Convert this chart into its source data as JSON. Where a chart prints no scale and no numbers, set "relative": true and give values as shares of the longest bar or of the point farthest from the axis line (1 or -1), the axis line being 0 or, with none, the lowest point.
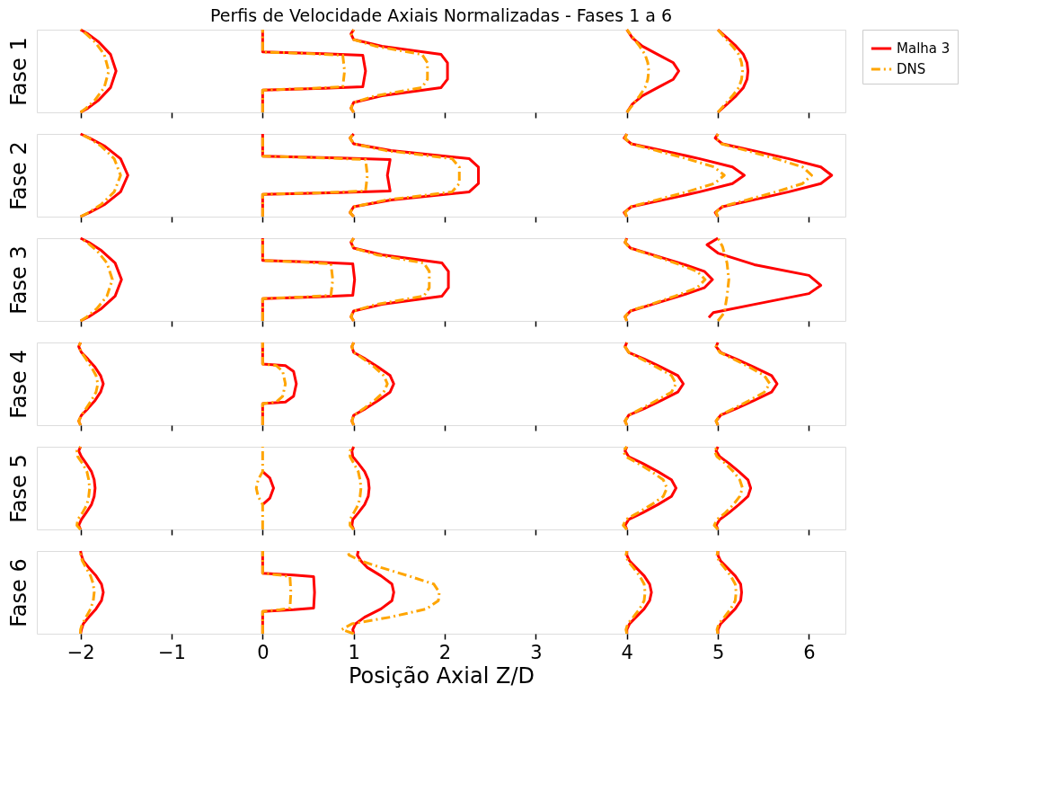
{
  "chart_data": [
    {
      "type": "line",
      "title": "Perfis de Velocidade Axiais Normalizadas - Fases 1 a 6",
      "ylabel": "Fase 1",
      "relative": true,
      "xlim": [
        -2.48,
        6.4
      ],
      "xticks": [
        -2,
        -1,
        0,
        1,
        2,
        3,
        4,
        5,
        6
      ],
      "tick_labels": false,
      "grid": false,
      "legend": "right",
      "marker": "none",
      "series": [
        {
          "name": "Malha 3",
          "color": "#ff0000",
          "line_style": "solid",
          "x": [
            -2,
            -1.92,
            -1.8,
            -1.67,
            -1.61,
            -1.67,
            -1.8,
            -1.92,
            -2
          ],
          "values": [
            0,
            0.05,
            0.15,
            0.3,
            0.5,
            0.7,
            0.85,
            0.95,
            1
          ]
        },
        {
          "name": "DNS",
          "color": "#ffa500",
          "line_style": "dashdot",
          "x": [
            -2,
            -1.94,
            -1.84,
            -1.74,
            -1.69,
            -1.74,
            -1.84,
            -1.94,
            -2
          ],
          "values": [
            0,
            0.05,
            0.15,
            0.3,
            0.5,
            0.7,
            0.85,
            0.95,
            1
          ]
        },
        {
          "color": "#ff0000",
          "line_style": "solid",
          "x": [
            0,
            0,
            0.67,
            1.1,
            1.13,
            1.1,
            0.67,
            0,
            0
          ],
          "values": [
            0,
            0.27,
            0.29,
            0.31,
            0.5,
            0.69,
            0.71,
            0.73,
            1
          ]
        },
        {
          "color": "#ffa500",
          "line_style": "dashdot",
          "x": [
            0,
            0,
            0.54,
            0.88,
            0.9,
            0.88,
            0.54,
            0,
            0
          ],
          "values": [
            0,
            0.27,
            0.29,
            0.31,
            0.5,
            0.69,
            0.71,
            0.73,
            1
          ]
        },
        {
          "color": "#ff0000",
          "line_style": "solid",
          "x": [
            1,
            0.97,
            1.0,
            1.31,
            1.96,
            2.03,
            2.03,
            2.03,
            1.96,
            1.31,
            1.0,
            0.97,
            1
          ],
          "values": [
            0,
            0.05,
            0.12,
            0.2,
            0.3,
            0.4,
            0.5,
            0.6,
            0.7,
            0.8,
            0.88,
            0.95,
            1
          ]
        },
        {
          "color": "#ffa500",
          "line_style": "dashdot",
          "x": [
            1,
            0.97,
            1.0,
            1.24,
            1.75,
            1.81,
            1.81,
            1.81,
            1.75,
            1.24,
            1.0,
            0.97,
            1
          ],
          "values": [
            0,
            0.05,
            0.12,
            0.2,
            0.3,
            0.4,
            0.5,
            0.6,
            0.7,
            0.8,
            0.88,
            0.95,
            1
          ]
        },
        {
          "color": "#ff0000",
          "line_style": "solid",
          "x": [
            4,
            4.06,
            4.17,
            4.34,
            4.51,
            4.57,
            4.51,
            4.34,
            4.17,
            4.06,
            4
          ],
          "values": [
            0,
            0.1,
            0.2,
            0.3,
            0.4,
            0.5,
            0.6,
            0.7,
            0.8,
            0.9,
            1
          ]
        },
        {
          "color": "#ffa500",
          "line_style": "dashdot",
          "x": [
            4,
            4.07,
            4.14,
            4.2,
            4.23,
            4.24,
            4.23,
            4.2,
            4.14,
            4.07,
            4
          ],
          "values": [
            0,
            0.1,
            0.2,
            0.3,
            0.4,
            0.5,
            0.6,
            0.7,
            0.8,
            0.9,
            1
          ]
        },
        {
          "color": "#ff0000",
          "line_style": "solid",
          "x": [
            5,
            5.1,
            5.2,
            5.28,
            5.32,
            5.33,
            5.32,
            5.28,
            5.2,
            5.1,
            5
          ],
          "values": [
            0,
            0.1,
            0.2,
            0.3,
            0.4,
            0.5,
            0.6,
            0.7,
            0.8,
            0.9,
            1
          ]
        },
        {
          "color": "#ffa500",
          "line_style": "dashdot",
          "x": [
            5,
            5.08,
            5.16,
            5.23,
            5.26,
            5.27,
            5.26,
            5.23,
            5.16,
            5.08,
            5
          ],
          "values": [
            0,
            0.1,
            0.2,
            0.3,
            0.4,
            0.5,
            0.6,
            0.7,
            0.8,
            0.9,
            1
          ]
        }
      ]
    },
    {
      "type": "line",
      "ylabel": "Fase 2",
      "relative": true,
      "xlim": [
        -2.48,
        6.4
      ],
      "xticks": [
        -2,
        -1,
        0,
        1,
        2,
        3,
        4,
        5,
        6
      ],
      "tick_labels": false,
      "grid": false,
      "marker": "none",
      "series": [
        {
          "color": "#ff0000",
          "line_style": "solid",
          "x": [
            -2,
            -1.9,
            -1.73,
            -1.56,
            -1.48,
            -1.56,
            -1.73,
            -1.9,
            -2
          ],
          "values": [
            0,
            0.05,
            0.15,
            0.3,
            0.5,
            0.7,
            0.85,
            0.95,
            1
          ]
        },
        {
          "color": "#ffa500",
          "line_style": "dashdot",
          "x": [
            -2,
            -1.91,
            -1.77,
            -1.63,
            -1.56,
            -1.63,
            -1.77,
            -1.91,
            -2
          ],
          "values": [
            0,
            0.05,
            0.15,
            0.3,
            0.5,
            0.7,
            0.85,
            0.95,
            1
          ]
        },
        {
          "color": "#ff0000",
          "line_style": "solid",
          "x": [
            0,
            0,
            0.84,
            1.4,
            1.37,
            1.4,
            0.84,
            0,
            0
          ],
          "values": [
            0,
            0.27,
            0.29,
            0.31,
            0.5,
            0.69,
            0.71,
            0.73,
            1
          ]
        },
        {
          "color": "#ffa500",
          "line_style": "dashdot",
          "x": [
            0,
            0,
            0.69,
            1.13,
            1.15,
            1.13,
            0.69,
            0,
            0
          ],
          "values": [
            0,
            0.27,
            0.29,
            0.31,
            0.5,
            0.69,
            0.71,
            0.73,
            1
          ]
        },
        {
          "color": "#ff0000",
          "line_style": "solid",
          "x": [
            1,
            0.96,
            1.0,
            1.41,
            2.27,
            2.37,
            2.37,
            2.37,
            2.27,
            1.41,
            1.0,
            0.96,
            1
          ],
          "values": [
            0,
            0.05,
            0.12,
            0.2,
            0.3,
            0.4,
            0.5,
            0.6,
            0.7,
            0.8,
            0.88,
            0.95,
            1
          ]
        },
        {
          "color": "#ffa500",
          "line_style": "dashdot",
          "x": [
            1,
            0.96,
            1.0,
            1.35,
            2.08,
            2.16,
            2.16,
            2.16,
            2.08,
            1.35,
            1.0,
            0.96,
            1
          ],
          "values": [
            0,
            0.05,
            0.12,
            0.2,
            0.3,
            0.4,
            0.5,
            0.6,
            0.7,
            0.8,
            0.88,
            0.95,
            1
          ]
        },
        {
          "color": "#ff0000",
          "line_style": "solid",
          "x": [
            4,
            3.97,
            4.05,
            4.39,
            4.8,
            5.16,
            5.29,
            5.16,
            4.8,
            4.39,
            4.05,
            3.97,
            4
          ],
          "values": [
            0,
            0.05,
            0.12,
            0.2,
            0.3,
            0.4,
            0.5,
            0.6,
            0.7,
            0.8,
            0.88,
            0.95,
            1
          ]
        },
        {
          "color": "#ffa500",
          "line_style": "dashdot",
          "x": [
            4,
            3.98,
            4.04,
            4.32,
            4.66,
            4.96,
            5.07,
            4.96,
            4.66,
            4.32,
            4.04,
            3.98,
            4
          ],
          "values": [
            0,
            0.05,
            0.12,
            0.2,
            0.3,
            0.4,
            0.5,
            0.6,
            0.7,
            0.8,
            0.88,
            0.95,
            1
          ]
        },
        {
          "color": "#ff0000",
          "line_style": "solid",
          "x": [
            5,
            4.97,
            5.05,
            5.38,
            5.78,
            6.13,
            6.25,
            6.13,
            5.78,
            5.38,
            5.05,
            4.97,
            5
          ],
          "values": [
            0,
            0.05,
            0.12,
            0.2,
            0.3,
            0.4,
            0.5,
            0.6,
            0.7,
            0.8,
            0.88,
            0.95,
            1
          ]
        },
        {
          "color": "#ffa500",
          "line_style": "dashdot",
          "x": [
            5,
            4.98,
            5.04,
            5.31,
            5.64,
            5.93,
            6.03,
            5.93,
            5.64,
            5.31,
            5.04,
            4.98,
            5
          ],
          "values": [
            0,
            0.05,
            0.12,
            0.2,
            0.3,
            0.4,
            0.5,
            0.6,
            0.7,
            0.8,
            0.88,
            0.95,
            1
          ]
        }
      ]
    },
    {
      "type": "line",
      "ylabel": "Fase 3",
      "relative": true,
      "xlim": [
        -2.48,
        6.4
      ],
      "xticks": [
        -2,
        -1,
        0,
        1,
        2,
        3,
        4,
        5,
        6
      ],
      "tick_labels": false,
      "grid": false,
      "marker": "none",
      "series": [
        {
          "color": "#ff0000",
          "line_style": "solid",
          "x": [
            -2,
            -1.91,
            -1.77,
            -1.62,
            -1.55,
            -1.62,
            -1.77,
            -1.91,
            -2
          ],
          "values": [
            0,
            0.05,
            0.15,
            0.3,
            0.5,
            0.7,
            0.85,
            0.95,
            1
          ]
        },
        {
          "color": "#ffa500",
          "line_style": "dashdot",
          "x": [
            -2,
            -1.93,
            -1.82,
            -1.71,
            -1.65,
            -1.71,
            -1.82,
            -1.93,
            -2
          ],
          "values": [
            0,
            0.05,
            0.15,
            0.3,
            0.5,
            0.7,
            0.85,
            0.95,
            1
          ]
        },
        {
          "color": "#ff0000",
          "line_style": "solid",
          "x": [
            0,
            0,
            0.61,
            0.99,
            1.01,
            0.99,
            0.61,
            0,
            0
          ],
          "values": [
            0,
            0.27,
            0.29,
            0.31,
            0.5,
            0.69,
            0.71,
            0.73,
            1
          ]
        },
        {
          "color": "#ffa500",
          "line_style": "dashdot",
          "x": [
            0,
            0,
            0.46,
            0.75,
            0.77,
            0.75,
            0.46,
            0,
            0
          ],
          "values": [
            0,
            0.27,
            0.29,
            0.31,
            0.5,
            0.69,
            0.71,
            0.73,
            1
          ]
        },
        {
          "color": "#ff0000",
          "line_style": "solid",
          "x": [
            1,
            0.97,
            1.0,
            1.31,
            1.97,
            2.04,
            2.04,
            2.04,
            1.97,
            1.31,
            1.0,
            0.97,
            1
          ],
          "values": [
            0,
            0.05,
            0.12,
            0.2,
            0.3,
            0.4,
            0.5,
            0.6,
            0.7,
            0.8,
            0.88,
            0.95,
            1
          ]
        },
        {
          "color": "#ffa500",
          "line_style": "dashdot",
          "x": [
            1,
            0.97,
            1.0,
            1.25,
            1.77,
            1.83,
            1.83,
            1.83,
            1.77,
            1.25,
            1.0,
            0.97,
            1
          ],
          "values": [
            0,
            0.05,
            0.12,
            0.2,
            0.3,
            0.4,
            0.5,
            0.6,
            0.7,
            0.8,
            0.88,
            0.95,
            1
          ]
        },
        {
          "color": "#ff0000",
          "line_style": "solid",
          "x": [
            4,
            3.98,
            4.04,
            4.28,
            4.58,
            4.85,
            4.94,
            4.85,
            4.58,
            4.28,
            4.04,
            3.98,
            4
          ],
          "values": [
            0,
            0.05,
            0.12,
            0.2,
            0.3,
            0.4,
            0.5,
            0.6,
            0.7,
            0.8,
            0.88,
            0.95,
            1
          ]
        },
        {
          "color": "#ffa500",
          "line_style": "dashdot",
          "x": [
            4,
            3.98,
            4.03,
            4.26,
            4.53,
            4.77,
            4.86,
            4.77,
            4.53,
            4.26,
            4.03,
            3.98,
            4
          ],
          "values": [
            0,
            0.05,
            0.12,
            0.2,
            0.3,
            0.4,
            0.5,
            0.6,
            0.7,
            0.8,
            0.88,
            0.95,
            1
          ]
        },
        {
          "color": "#ff0000",
          "line_style": "solid",
          "x": [
            4.9,
            4.95,
            5.4,
            6.0,
            6.13,
            6.0,
            5.4,
            5.0,
            4.88,
            5.0
          ],
          "values": [
            0.04,
            0.1,
            0.2,
            0.33,
            0.43,
            0.55,
            0.68,
            0.82,
            0.92,
            1
          ]
        },
        {
          "color": "#ffa500",
          "line_style": "dashdot",
          "x": [
            5,
            5.07,
            5.1,
            5.12,
            5.1,
            5.05,
            5
          ],
          "values": [
            0,
            0.1,
            0.3,
            0.5,
            0.7,
            0.9,
            1
          ]
        }
      ]
    },
    {
      "type": "line",
      "ylabel": "Fase 4",
      "relative": true,
      "xlim": [
        -2.48,
        6.4
      ],
      "xticks": [
        -2,
        -1,
        0,
        1,
        2,
        3,
        4,
        5,
        6
      ],
      "tick_labels": false,
      "grid": false,
      "marker": "none",
      "series": [
        {
          "color": "#ff0000",
          "line_style": "solid",
          "x": [
            -2,
            -2.02,
            -1.99,
            -1.92,
            -1.84,
            -1.78,
            -1.75,
            -1.78,
            -1.84,
            -1.92,
            -1.99,
            -2.02,
            -2
          ],
          "values": [
            0,
            0.05,
            0.12,
            0.2,
            0.3,
            0.4,
            0.5,
            0.6,
            0.7,
            0.8,
            0.88,
            0.95,
            1
          ]
        },
        {
          "color": "#ffa500",
          "line_style": "dashdot",
          "x": [
            -2,
            -2.02,
            -1.99,
            -1.94,
            -1.88,
            -1.83,
            -1.81,
            -1.83,
            -1.88,
            -1.94,
            -1.99,
            -2.02,
            -2
          ],
          "values": [
            0,
            0.05,
            0.12,
            0.2,
            0.3,
            0.4,
            0.5,
            0.6,
            0.7,
            0.8,
            0.88,
            0.95,
            1
          ]
        },
        {
          "color": "#ff0000",
          "line_style": "solid",
          "x": [
            0,
            0,
            0.25,
            0.34,
            0.37,
            0.34,
            0.25,
            0,
            0
          ],
          "values": [
            0,
            0.26,
            0.28,
            0.35,
            0.5,
            0.65,
            0.72,
            0.74,
            1
          ]
        },
        {
          "color": "#ffa500",
          "line_style": "dashdot",
          "x": [
            0,
            0,
            0.15,
            0.22,
            0.25,
            0.22,
            0.15,
            0,
            0
          ],
          "values": [
            0,
            0.26,
            0.28,
            0.35,
            0.5,
            0.65,
            0.72,
            0.74,
            1
          ]
        },
        {
          "color": "#ff0000",
          "line_style": "solid",
          "x": [
            1,
            0.98,
            1.0,
            1.13,
            1.27,
            1.4,
            1.44,
            1.4,
            1.27,
            1.13,
            1.0,
            0.98,
            1
          ],
          "values": [
            0,
            0.05,
            0.12,
            0.2,
            0.3,
            0.4,
            0.5,
            0.6,
            0.7,
            0.8,
            0.88,
            0.95,
            1
          ]
        },
        {
          "color": "#ffa500",
          "line_style": "dashdot",
          "x": [
            1,
            0.98,
            1.0,
            1.11,
            1.23,
            1.33,
            1.37,
            1.33,
            1.23,
            1.11,
            1.0,
            0.98,
            1
          ],
          "values": [
            0,
            0.05,
            0.12,
            0.2,
            0.3,
            0.4,
            0.5,
            0.6,
            0.7,
            0.8,
            0.88,
            0.95,
            1
          ]
        },
        {
          "color": "#ff0000",
          "line_style": "solid",
          "x": [
            4,
            3.98,
            4.02,
            4.19,
            4.38,
            4.56,
            4.62,
            4.56,
            4.38,
            4.19,
            4.02,
            3.98,
            4
          ],
          "values": [
            0,
            0.05,
            0.12,
            0.2,
            0.3,
            0.4,
            0.5,
            0.6,
            0.7,
            0.8,
            0.88,
            0.95,
            1
          ]
        },
        {
          "color": "#ffa500",
          "line_style": "dashdot",
          "x": [
            4,
            3.98,
            4.02,
            4.16,
            4.33,
            4.49,
            4.54,
            4.49,
            4.33,
            4.16,
            4.02,
            3.98,
            4
          ],
          "values": [
            0,
            0.05,
            0.12,
            0.2,
            0.3,
            0.4,
            0.5,
            0.6,
            0.7,
            0.8,
            0.88,
            0.95,
            1
          ]
        },
        {
          "color": "#ff0000",
          "line_style": "solid",
          "x": [
            5,
            4.98,
            5.03,
            5.2,
            5.4,
            5.59,
            5.65,
            5.59,
            5.4,
            5.2,
            5.03,
            4.98,
            5
          ],
          "values": [
            0,
            0.05,
            0.12,
            0.2,
            0.3,
            0.4,
            0.5,
            0.6,
            0.7,
            0.8,
            0.88,
            0.95,
            1
          ]
        },
        {
          "color": "#ffa500",
          "line_style": "dashdot",
          "x": [
            5,
            4.98,
            5.02,
            5.17,
            5.35,
            5.51,
            5.57,
            5.51,
            5.35,
            5.17,
            5.02,
            4.98,
            5
          ],
          "values": [
            0,
            0.05,
            0.12,
            0.2,
            0.3,
            0.4,
            0.5,
            0.6,
            0.7,
            0.8,
            0.88,
            0.95,
            1
          ]
        }
      ]
    },
    {
      "type": "line",
      "ylabel": "Fase 5",
      "relative": true,
      "xlim": [
        -2.48,
        6.4
      ],
      "xticks": [
        -2,
        -1,
        0,
        1,
        2,
        3,
        4,
        5,
        6
      ],
      "tick_labels": false,
      "grid": false,
      "marker": "none",
      "series": [
        {
          "color": "#ff0000",
          "line_style": "solid",
          "x": [
            -2,
            -2.02,
            -1.99,
            -1.94,
            -1.88,
            -1.85,
            -1.84,
            -1.85,
            -1.88,
            -1.94,
            -1.99,
            -2.02,
            -2
          ],
          "values": [
            0,
            0.05,
            0.12,
            0.2,
            0.3,
            0.4,
            0.5,
            0.6,
            0.7,
            0.8,
            0.88,
            0.95,
            1
          ]
        },
        {
          "color": "#ffa500",
          "line_style": "dashdot",
          "x": [
            -2,
            -2.04,
            -2.03,
            -1.98,
            -1.93,
            -1.91,
            -1.9,
            -1.91,
            -1.93,
            -1.98,
            -2.03,
            -2.04,
            -2
          ],
          "values": [
            0,
            0.05,
            0.12,
            0.2,
            0.3,
            0.4,
            0.5,
            0.6,
            0.7,
            0.8,
            0.88,
            0.95,
            1
          ]
        },
        {
          "color": "#ff0000",
          "line_style": "solid",
          "x": [
            0,
            0.08,
            0.12,
            0.08,
            0
          ],
          "values": [
            0.3,
            0.38,
            0.5,
            0.62,
            0.7
          ]
        },
        {
          "color": "#ffa500",
          "line_style": "dashdot",
          "x": [
            0,
            0,
            -0.05,
            -0.07,
            -0.05,
            0,
            0
          ],
          "values": [
            0,
            0.3,
            0.4,
            0.5,
            0.6,
            0.7,
            1
          ]
        },
        {
          "color": "#ff0000",
          "line_style": "solid",
          "x": [
            1,
            0.98,
            0.99,
            1.05,
            1.12,
            1.16,
            1.17,
            1.16,
            1.12,
            1.05,
            0.99,
            0.98,
            1
          ],
          "values": [
            0,
            0.05,
            0.12,
            0.2,
            0.3,
            0.4,
            0.5,
            0.6,
            0.7,
            0.8,
            0.88,
            0.95,
            1
          ]
        },
        {
          "color": "#ffa500",
          "line_style": "dashdot",
          "x": [
            1,
            0.96,
            0.96,
            1.0,
            1.05,
            1.07,
            1.08,
            1.07,
            1.05,
            1.0,
            0.96,
            0.96,
            1
          ],
          "values": [
            0,
            0.05,
            0.12,
            0.2,
            0.3,
            0.4,
            0.5,
            0.6,
            0.7,
            0.8,
            0.88,
            0.95,
            1
          ]
        },
        {
          "color": "#ff0000",
          "line_style": "solid",
          "x": [
            4,
            3.98,
            4.02,
            4.17,
            4.34,
            4.49,
            4.54,
            4.49,
            4.34,
            4.17,
            4.02,
            3.98,
            4
          ],
          "values": [
            0,
            0.05,
            0.12,
            0.2,
            0.3,
            0.4,
            0.5,
            0.6,
            0.7,
            0.8,
            0.88,
            0.95,
            1
          ]
        },
        {
          "color": "#ffa500",
          "line_style": "dashdot",
          "x": [
            4,
            3.96,
            3.99,
            4.12,
            4.27,
            4.4,
            4.44,
            4.4,
            4.27,
            4.12,
            3.99,
            3.96,
            4
          ],
          "values": [
            0,
            0.05,
            0.12,
            0.2,
            0.3,
            0.4,
            0.5,
            0.6,
            0.7,
            0.8,
            0.88,
            0.95,
            1
          ]
        },
        {
          "color": "#ff0000",
          "line_style": "solid",
          "x": [
            5,
            4.98,
            5.02,
            5.12,
            5.23,
            5.33,
            5.36,
            5.33,
            5.23,
            5.12,
            5.02,
            4.98,
            5
          ],
          "values": [
            0,
            0.05,
            0.12,
            0.2,
            0.3,
            0.4,
            0.5,
            0.6,
            0.7,
            0.8,
            0.88,
            0.95,
            1
          ]
        },
        {
          "color": "#ffa500",
          "line_style": "dashdot",
          "x": [
            5,
            4.96,
            4.99,
            5.08,
            5.17,
            5.24,
            5.27,
            5.24,
            5.17,
            5.08,
            4.99,
            4.96,
            5
          ],
          "values": [
            0,
            0.05,
            0.12,
            0.2,
            0.3,
            0.4,
            0.5,
            0.6,
            0.7,
            0.8,
            0.88,
            0.95,
            1
          ]
        }
      ]
    },
    {
      "type": "line",
      "ylabel": "Fase 6",
      "xlabel": "Posição Axial Z/D",
      "relative": true,
      "xlim": [
        -2.48,
        6.4
      ],
      "xticks": [
        -2,
        -1,
        0,
        1,
        2,
        3,
        4,
        5,
        6
      ],
      "tick_labels": "x",
      "grid": false,
      "marker": "none",
      "series": [
        {
          "color": "#ff0000",
          "line_style": "solid",
          "x": [
            -2,
            -1.99,
            -1.97,
            -1.91,
            -1.83,
            -1.77,
            -1.75,
            -1.77,
            -1.83,
            -1.91,
            -1.97,
            -1.99,
            -2
          ],
          "values": [
            0,
            0.05,
            0.12,
            0.2,
            0.3,
            0.4,
            0.5,
            0.6,
            0.7,
            0.8,
            0.88,
            0.95,
            1
          ]
        },
        {
          "color": "#ffa500",
          "line_style": "dashdot",
          "x": [
            -2,
            -2.0,
            -1.98,
            -1.94,
            -1.89,
            -1.86,
            -1.85,
            -1.86,
            -1.89,
            -1.94,
            -1.98,
            -2.0,
            -2
          ],
          "values": [
            0,
            0.05,
            0.12,
            0.2,
            0.3,
            0.4,
            0.5,
            0.6,
            0.7,
            0.8,
            0.88,
            0.95,
            1
          ]
        },
        {
          "color": "#ff0000",
          "line_style": "solid",
          "x": [
            0,
            0,
            0.34,
            0.56,
            0.57,
            0.56,
            0.34,
            0,
            0
          ],
          "values": [
            0,
            0.27,
            0.29,
            0.31,
            0.5,
            0.69,
            0.71,
            0.73,
            1
          ]
        },
        {
          "color": "#ffa500",
          "line_style": "dashdot",
          "x": [
            0,
            0,
            0.19,
            0.3,
            0.31,
            0.3,
            0.19,
            0,
            0
          ],
          "values": [
            0,
            0.27,
            0.29,
            0.31,
            0.5,
            0.69,
            0.71,
            0.73,
            1
          ]
        },
        {
          "color": "#ff0000",
          "line_style": "solid",
          "x": [
            1,
            0.99,
            1.02,
            1.12,
            1.3,
            1.42,
            1.44,
            1.42,
            1.3,
            1.15,
            1.08,
            1.04,
            1.05
          ],
          "values": [
            0,
            0.05,
            0.12,
            0.2,
            0.3,
            0.4,
            0.5,
            0.6,
            0.7,
            0.8,
            0.88,
            0.95,
            1
          ]
        },
        {
          "color": "#ffa500",
          "line_style": "dashdot",
          "x": [
            1,
            0.87,
            0.98,
            1.4,
            1.8,
            1.93,
            1.94,
            1.88,
            1.6,
            1.3,
            1.08,
            0.95,
            0.93
          ],
          "values": [
            0,
            0.05,
            0.12,
            0.2,
            0.3,
            0.4,
            0.5,
            0.6,
            0.7,
            0.8,
            0.88,
            0.95,
            1
          ]
        },
        {
          "color": "#ff0000",
          "line_style": "solid",
          "x": [
            4,
            4.0,
            4.03,
            4.1,
            4.19,
            4.25,
            4.27,
            4.25,
            4.19,
            4.1,
            4.03,
            4.0,
            4
          ],
          "values": [
            0,
            0.05,
            0.12,
            0.2,
            0.3,
            0.4,
            0.5,
            0.6,
            0.7,
            0.8,
            0.88,
            0.95,
            1
          ]
        },
        {
          "color": "#ffa500",
          "line_style": "dashdot",
          "x": [
            4,
            3.99,
            4.01,
            4.07,
            4.14,
            4.19,
            4.2,
            4.19,
            4.14,
            4.07,
            4.01,
            3.99,
            4
          ],
          "values": [
            0,
            0.05,
            0.12,
            0.2,
            0.3,
            0.4,
            0.5,
            0.6,
            0.7,
            0.8,
            0.88,
            0.95,
            1
          ]
        },
        {
          "color": "#ff0000",
          "line_style": "solid",
          "x": [
            5,
            5.0,
            5.03,
            5.1,
            5.19,
            5.25,
            5.26,
            5.25,
            5.19,
            5.1,
            5.03,
            5.0,
            5
          ],
          "values": [
            0,
            0.05,
            0.12,
            0.2,
            0.3,
            0.4,
            0.5,
            0.6,
            0.7,
            0.8,
            0.88,
            0.95,
            1
          ]
        },
        {
          "color": "#ffa500",
          "line_style": "dashdot",
          "x": [
            5,
            4.99,
            5.01,
            5.07,
            5.14,
            5.19,
            5.2,
            5.19,
            5.14,
            5.07,
            5.01,
            4.99,
            5
          ],
          "values": [
            0,
            0.05,
            0.12,
            0.2,
            0.3,
            0.4,
            0.5,
            0.6,
            0.7,
            0.8,
            0.88,
            0.95,
            1
          ]
        }
      ]
    }
  ]
}
